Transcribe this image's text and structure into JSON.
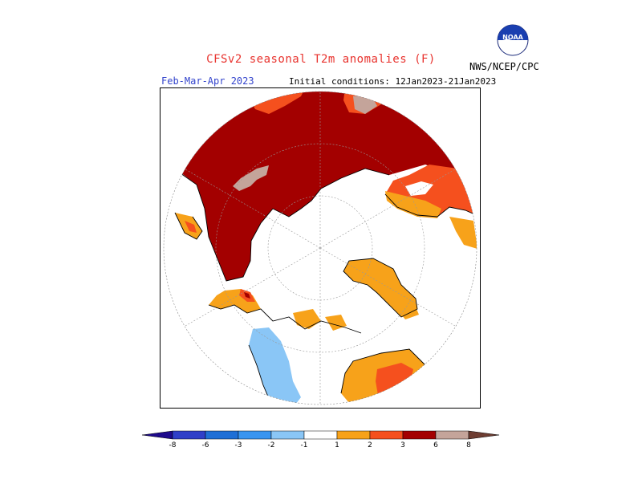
{
  "header": {
    "title": "CFSv2 seasonal T2m anomalies (F)",
    "period": "Feb-Mar-Apr 2023",
    "initial_conditions": "Initial conditions: 12Jan2023-21Jan2023",
    "agency": "NWS/NCEP/CPC",
    "logo_text": "NOAA"
  },
  "colorbar": {
    "labels": [
      "-8",
      "-6",
      "-3",
      "-2",
      "-1",
      "1",
      "2",
      "3",
      "6",
      "8"
    ],
    "colors": {
      "lt_-8": "#1e0a8c",
      "-8_-6": "#2f3fc8",
      "-6_-3": "#1f6fd6",
      "-3_-2": "#3a95f0",
      "-2_-1": "#8ac6f6",
      "-1_1": "#ffffff",
      "1_2": "#f7a21a",
      "2_3": "#f5501e",
      "3_6": "#a30000",
      "6_8": "#c4a49a",
      "gt_8": "#6e3d32"
    }
  }
}
